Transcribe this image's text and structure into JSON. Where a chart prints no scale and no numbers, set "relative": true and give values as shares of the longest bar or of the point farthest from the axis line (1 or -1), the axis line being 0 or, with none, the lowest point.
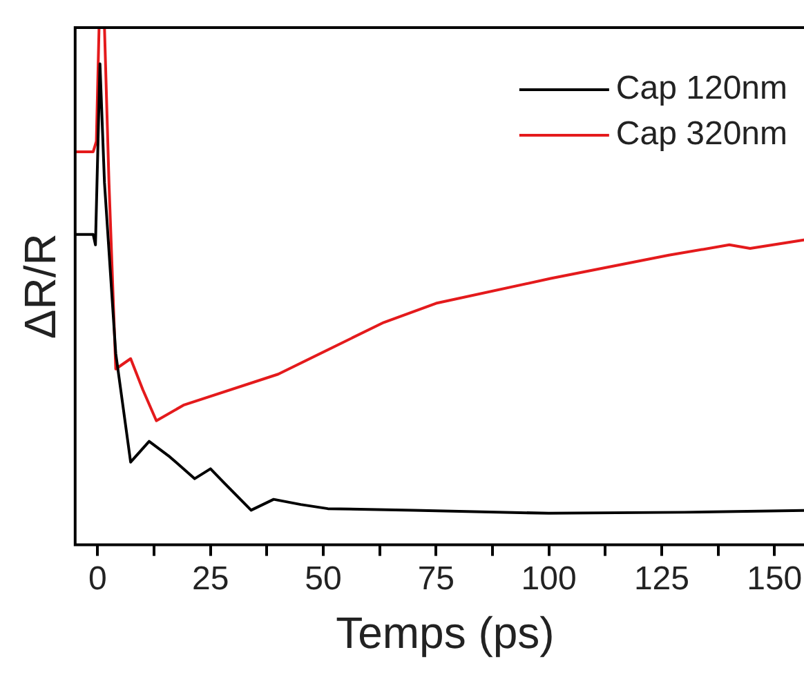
{
  "chart_data": {
    "type": "line",
    "xlabel": "Temps (ps)",
    "ylabel": "ΔR/R",
    "relative": true,
    "xlim": [
      -5,
      159
    ],
    "xticks": [
      0,
      {
        "value": 12.5,
        "label": null
      },
      25,
      {
        "value": 37.5,
        "label": null
      },
      50,
      {
        "value": 62.5,
        "label": null
      },
      75,
      {
        "value": 87.5,
        "label": null
      },
      100,
      {
        "value": 112.5,
        "label": null
      },
      125,
      {
        "value": 137.5,
        "label": null
      },
      150
    ],
    "grid": false,
    "legend": "top right",
    "line_style": "solid",
    "marker": "none",
    "series": [
      {
        "name": "Cap 120nm",
        "color": "#000000",
        "x": [
          -5,
          -1,
          -0.5,
          0.5,
          1.5,
          4,
          7.3,
          11.4,
          16,
          21.5,
          25,
          28,
          34,
          39,
          45,
          51,
          70,
          100,
          130,
          159
        ],
        "values": [
          0.6,
          0.6,
          0.58,
          0.93,
          0.7,
          0.37,
          0.16,
          0.2,
          0.17,
          0.128,
          0.147,
          0.12,
          0.067,
          0.088,
          0.078,
          0.07,
          0.067,
          0.061,
          0.063,
          0.067
        ]
      },
      {
        "name": "Cap 320nm",
        "color": "#e41a1c",
        "x": [
          -5,
          -1,
          -0.3,
          0.3,
          1.5,
          2.5,
          4,
          7.3,
          10,
          13,
          19,
          40,
          63.4,
          75,
          100.4,
          126.6,
          140,
          144.6,
          157
        ],
        "values": [
          0.76,
          0.76,
          0.78,
          1,
          1,
          0.7,
          0.34,
          0.36,
          0.3,
          0.24,
          0.27,
          0.33,
          0.43,
          0.467,
          0.515,
          0.56,
          0.58,
          0.573,
          0.59
        ]
      }
    ]
  }
}
